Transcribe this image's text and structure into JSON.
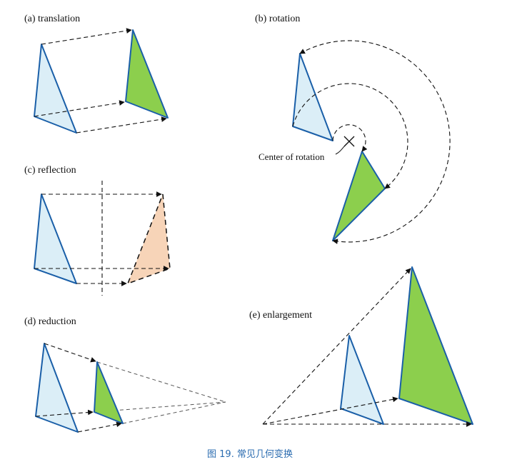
{
  "panels": {
    "translation": "(a) translation",
    "rotation": "(b) rotation",
    "reflection": "(c) reflection",
    "reduction": "(d) reduction",
    "enlargement": "(e) enlargement"
  },
  "rotation_center_label": "Center of rotation",
  "caption": "图 19. 常见几何变换",
  "colors": {
    "original_fill": "#dbeef7",
    "image_fill": "#8ccf4d",
    "reflection_fill": "#f7d4b8",
    "outline": "#1a5fa8",
    "caption": "#2b6cb0"
  }
}
